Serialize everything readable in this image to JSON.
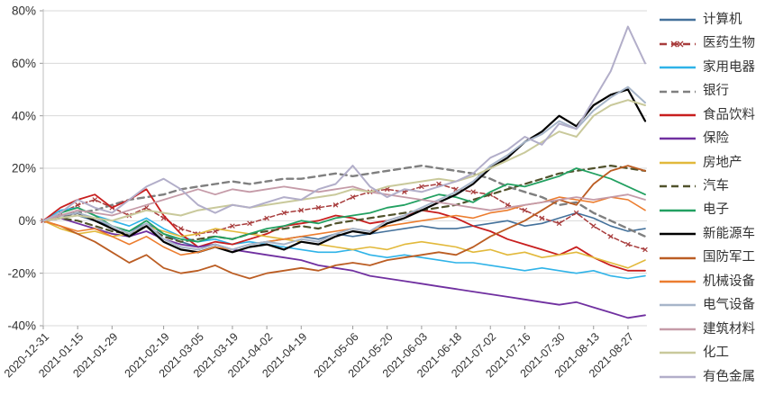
{
  "chart_data": {
    "type": "line",
    "title": "",
    "xlabel": "",
    "ylabel": "",
    "grid": true,
    "legend_position": "right",
    "ylim": [
      -40,
      80
    ],
    "y_tick_step": 20,
    "y_tick_labels": [
      "80%",
      "60%",
      "40%",
      "20%",
      "0%",
      "-20%",
      "-40%"
    ],
    "x_tick_labels": [
      "2020-12-31",
      "2021-01-15",
      "2021-01-29",
      "2021-02-19",
      "2021-03-05",
      "2021-03-19",
      "2021-04-02",
      "2021-04-19",
      "2021-05-06",
      "2021-05-20",
      "2021-06-03",
      "2021-06-18",
      "2021-07-02",
      "2021-07-16",
      "2021-07-30",
      "2021-08-13",
      "2021-08-27"
    ],
    "x_tick_indices": [
      0,
      2,
      4,
      7,
      9,
      11,
      13,
      15,
      18,
      20,
      22,
      24,
      26,
      28,
      30,
      32,
      34
    ],
    "x_dates": [
      "2020-12-31",
      "2021-01-08",
      "2021-01-15",
      "2021-01-22",
      "2021-01-29",
      "2021-02-05",
      "2021-02-10",
      "2021-02-19",
      "2021-02-26",
      "2021-03-05",
      "2021-03-12",
      "2021-03-19",
      "2021-03-26",
      "2021-04-02",
      "2021-04-09",
      "2021-04-19",
      "2021-04-23",
      "2021-04-30",
      "2021-05-06",
      "2021-05-14",
      "2021-05-20",
      "2021-05-28",
      "2021-06-03",
      "2021-06-11",
      "2021-06-18",
      "2021-06-25",
      "2021-07-02",
      "2021-07-09",
      "2021-07-16",
      "2021-07-23",
      "2021-07-30",
      "2021-08-06",
      "2021-08-13",
      "2021-08-20",
      "2021-08-27",
      "2021-09-01"
    ],
    "axis_color": "#bfbfbf",
    "grid_color": "#d9d9d9",
    "tick_color": "#9a9a9a",
    "label_color": "#303030",
    "series": [
      {
        "name": "计算机",
        "color": "#44719b",
        "style": "solid",
        "width": 1.6,
        "values": [
          0,
          1,
          2,
          0,
          -2,
          -4,
          -1,
          -5,
          -8,
          -10,
          -9,
          -11,
          -9,
          -8,
          -7,
          -6,
          -7,
          -5,
          -6,
          -5,
          -4,
          -3,
          -2,
          -3,
          -3,
          -2,
          -1,
          0,
          -2,
          -1,
          1,
          3,
          1,
          -2,
          -4,
          -3
        ]
      },
      {
        "name": "医药生物",
        "color": "#a83d3d",
        "style": "dash-marker",
        "width": 1.5,
        "values": [
          0,
          3,
          6,
          8,
          5,
          2,
          5,
          1,
          -3,
          -5,
          -4,
          -2,
          -1,
          1,
          3,
          4,
          5,
          6,
          9,
          11,
          12,
          11,
          13,
          14,
          12,
          11,
          10,
          6,
          4,
          1,
          -1,
          3,
          -2,
          -6,
          -9,
          -11
        ]
      },
      {
        "name": "家用电器",
        "color": "#2fb3e8",
        "style": "solid",
        "width": 1.6,
        "values": [
          0,
          4,
          5,
          2,
          0,
          -2,
          1,
          -3,
          -6,
          -8,
          -7,
          -9,
          -8,
          -9,
          -10,
          -11,
          -12,
          -12,
          -11,
          -13,
          -14,
          -13,
          -14,
          -15,
          -16,
          -16,
          -17,
          -18,
          -19,
          -18,
          -19,
          -20,
          -19,
          -21,
          -22,
          -21
        ]
      },
      {
        "name": "银行",
        "color": "#7f7f7f",
        "style": "dashed",
        "width": 2.4,
        "values": [
          0,
          1,
          3,
          4,
          6,
          8,
          9,
          10,
          12,
          13,
          14,
          15,
          14,
          15,
          16,
          16,
          17,
          18,
          17,
          18,
          19,
          20,
          21,
          20,
          19,
          18,
          16,
          13,
          11,
          9,
          6,
          7,
          3,
          0,
          -3,
          -6
        ]
      },
      {
        "name": "食品饮料",
        "color": "#c81e1e",
        "style": "solid",
        "width": 1.8,
        "values": [
          0,
          5,
          8,
          10,
          5,
          8,
          12,
          2,
          -5,
          -10,
          -8,
          -9,
          -7,
          -5,
          -2,
          -1,
          0,
          2,
          1,
          -1,
          0,
          2,
          4,
          3,
          1,
          -2,
          -4,
          -7,
          -9,
          -11,
          -13,
          -10,
          -14,
          -17,
          -19,
          -19
        ]
      },
      {
        "name": "保险",
        "color": "#7030a0",
        "style": "solid",
        "width": 1.8,
        "values": [
          0,
          1,
          -1,
          -3,
          -5,
          -6,
          -4,
          -7,
          -9,
          -10,
          -9,
          -11,
          -12,
          -13,
          -14,
          -15,
          -17,
          -18,
          -19,
          -21,
          -22,
          -23,
          -24,
          -25,
          -26,
          -27,
          -28,
          -29,
          -30,
          -31,
          -32,
          -31,
          -33,
          -35,
          -37,
          -36
        ]
      },
      {
        "name": "房地产",
        "color": "#e2b93b",
        "style": "solid",
        "width": 1.6,
        "values": [
          0,
          -3,
          -5,
          -4,
          -6,
          -5,
          -2,
          -4,
          -6,
          -5,
          -3,
          -4,
          -5,
          -6,
          -7,
          -8,
          -9,
          -10,
          -11,
          -10,
          -11,
          -9,
          -8,
          -9,
          -10,
          -12,
          -11,
          -13,
          -12,
          -14,
          -13,
          -12,
          -14,
          -16,
          -18,
          -15
        ]
      },
      {
        "name": "汽车",
        "color": "#51522c",
        "style": "dashed",
        "width": 2.2,
        "values": [
          0,
          1,
          0,
          -2,
          -4,
          -5,
          -2,
          -6,
          -8,
          -7,
          -6,
          -7,
          -5,
          -4,
          -3,
          -2,
          -3,
          -1,
          0,
          1,
          2,
          3,
          4,
          5,
          6,
          8,
          10,
          12,
          14,
          16,
          18,
          19,
          20,
          21,
          20,
          19
        ]
      },
      {
        "name": "电子",
        "color": "#22a061",
        "style": "solid",
        "width": 1.8,
        "values": [
          0,
          3,
          5,
          2,
          -2,
          -4,
          0,
          -5,
          -7,
          -8,
          -6,
          -7,
          -5,
          -3,
          -2,
          0,
          -1,
          1,
          2,
          3,
          5,
          6,
          8,
          10,
          9,
          7,
          11,
          14,
          13,
          15,
          17,
          20,
          18,
          16,
          13,
          10
        ]
      },
      {
        "name": "新能源车",
        "color": "#000000",
        "style": "solid",
        "width": 2.2,
        "values": [
          0,
          2,
          3,
          0,
          -3,
          -6,
          -2,
          -8,
          -11,
          -12,
          -10,
          -12,
          -10,
          -9,
          -11,
          -8,
          -9,
          -6,
          -4,
          -5,
          -1,
          1,
          4,
          7,
          10,
          14,
          20,
          24,
          30,
          34,
          40,
          36,
          44,
          48,
          50,
          38
        ]
      },
      {
        "name": "国防军工",
        "color": "#bb5d23",
        "style": "solid",
        "width": 1.8,
        "values": [
          0,
          -2,
          -5,
          -8,
          -12,
          -16,
          -13,
          -18,
          -20,
          -19,
          -17,
          -20,
          -22,
          -20,
          -19,
          -18,
          -19,
          -17,
          -16,
          -17,
          -15,
          -14,
          -13,
          -12,
          -13,
          -10,
          -6,
          -3,
          0,
          4,
          8,
          6,
          14,
          19,
          21,
          19
        ]
      },
      {
        "name": "机械设备",
        "color": "#ec7d2f",
        "style": "solid",
        "width": 1.6,
        "values": [
          0,
          -2,
          -4,
          -3,
          -6,
          -9,
          -6,
          -10,
          -13,
          -12,
          -10,
          -11,
          -9,
          -8,
          -7,
          -6,
          -5,
          -4,
          -3,
          -4,
          -2,
          -1,
          0,
          1,
          2,
          1,
          3,
          4,
          6,
          7,
          9,
          8,
          7,
          9,
          8,
          4
        ]
      },
      {
        "name": "电气设备",
        "color": "#a7b5c9",
        "style": "solid",
        "width": 2,
        "values": [
          0,
          2,
          3,
          1,
          -2,
          -5,
          -1,
          -7,
          -10,
          -11,
          -9,
          -11,
          -9,
          -8,
          -9,
          -7,
          -8,
          -5,
          -3,
          -4,
          0,
          2,
          5,
          8,
          11,
          15,
          21,
          25,
          30,
          33,
          38,
          35,
          42,
          47,
          51,
          45
        ]
      },
      {
        "name": "建筑材料",
        "color": "#c59ba8",
        "style": "solid",
        "width": 1.8,
        "values": [
          0,
          2,
          4,
          3,
          2,
          4,
          6,
          8,
          10,
          12,
          10,
          12,
          11,
          12,
          13,
          12,
          11,
          12,
          13,
          11,
          10,
          9,
          8,
          7,
          6,
          5,
          4,
          5,
          6,
          7,
          8,
          9,
          8,
          9,
          10,
          8
        ]
      },
      {
        "name": "化工",
        "color": "#c9c99b",
        "style": "solid",
        "width": 2,
        "values": [
          0,
          1,
          2,
          1,
          0,
          2,
          4,
          3,
          2,
          4,
          5,
          6,
          5,
          6,
          7,
          8,
          9,
          10,
          12,
          11,
          13,
          14,
          15,
          16,
          15,
          17,
          20,
          23,
          26,
          30,
          34,
          32,
          40,
          44,
          46,
          44
        ]
      },
      {
        "name": "有色金属",
        "color": "#b2aec9",
        "style": "solid",
        "width": 2,
        "values": [
          0,
          3,
          8,
          5,
          3,
          8,
          13,
          16,
          12,
          6,
          3,
          6,
          5,
          7,
          9,
          8,
          12,
          14,
          21,
          13,
          9,
          12,
          11,
          13,
          15,
          18,
          24,
          27,
          32,
          29,
          37,
          35,
          46,
          57,
          74,
          60
        ]
      }
    ]
  }
}
